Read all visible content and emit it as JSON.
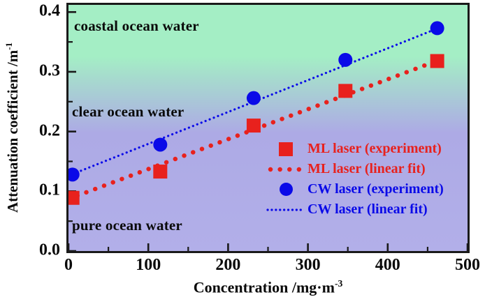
{
  "y_axis": {
    "label_base": "Attenuation coefficient /m",
    "label_sup": "-1",
    "tick_labels": [
      "0.0",
      "0.1",
      "0.2",
      "0.3",
      "0.4"
    ]
  },
  "x_axis": {
    "label_base": "Concentration /mg·m",
    "label_sup": "-3",
    "tick_labels": [
      "0",
      "100",
      "200",
      "300",
      "400",
      "500"
    ]
  },
  "zones": {
    "coastal": "coastal ocean water",
    "clear": "clear ocean water",
    "pure": "pure ocean water"
  },
  "legend": {
    "items": [
      {
        "label": "ML laser (experiment)",
        "marker": "red-square"
      },
      {
        "label": "ML laser (linear fit)",
        "marker": "red-dotted-line"
      },
      {
        "label": "CW laser (experiment)",
        "marker": "blue-circle"
      },
      {
        "label": "CW laser (linear fit)",
        "marker": "blue-dotted-line"
      }
    ]
  },
  "colors": {
    "ml_red": "#e8211d",
    "cw_blue": "#0a0ae8",
    "zone_green_top": "#a4eec5",
    "zone_lavender_bottom": "#b2afe9",
    "axis_black": "#1a1a1a"
  },
  "chart_data": {
    "type": "scatter",
    "title": "",
    "xlabel": "Concentration /mg·m⁻³",
    "ylabel": "Attenuation coefficient /m⁻¹",
    "xlim": [
      0,
      500
    ],
    "ylim": [
      0,
      0.412
    ],
    "x_major_ticks": [
      0,
      100,
      200,
      300,
      400,
      500
    ],
    "x_minor_ticks": [
      50,
      150,
      250,
      350,
      450
    ],
    "y_major_ticks": [
      0.0,
      0.1,
      0.2,
      0.3,
      0.4
    ],
    "y_minor_ticks": [
      0.05,
      0.15,
      0.25,
      0.35
    ],
    "grid": false,
    "legend_position": "inside lower-right",
    "background_zones": [
      "coastal ocean water",
      "clear ocean water",
      "pure ocean water"
    ],
    "series": [
      {
        "name": "ML laser (experiment)",
        "type": "scatter",
        "marker": "square",
        "color": "#e8211d",
        "x": [
          5,
          115,
          232,
          347,
          462
        ],
        "y": [
          0.089,
          0.133,
          0.21,
          0.268,
          0.318
        ]
      },
      {
        "name": "ML laser (linear fit)",
        "type": "line",
        "style": "dotted-large",
        "color": "#e8211d",
        "x": [
          0,
          465
        ],
        "y": [
          0.087,
          0.32
        ]
      },
      {
        "name": "CW laser (experiment)",
        "type": "scatter",
        "marker": "circle",
        "color": "#0a0ae8",
        "x": [
          5,
          115,
          232,
          347,
          462
        ],
        "y": [
          0.128,
          0.178,
          0.256,
          0.32,
          0.373
        ]
      },
      {
        "name": "CW laser (linear fit)",
        "type": "line",
        "style": "dotted-small",
        "color": "#0a0ae8",
        "x": [
          0,
          465
        ],
        "y": [
          0.126,
          0.374
        ]
      }
    ]
  }
}
